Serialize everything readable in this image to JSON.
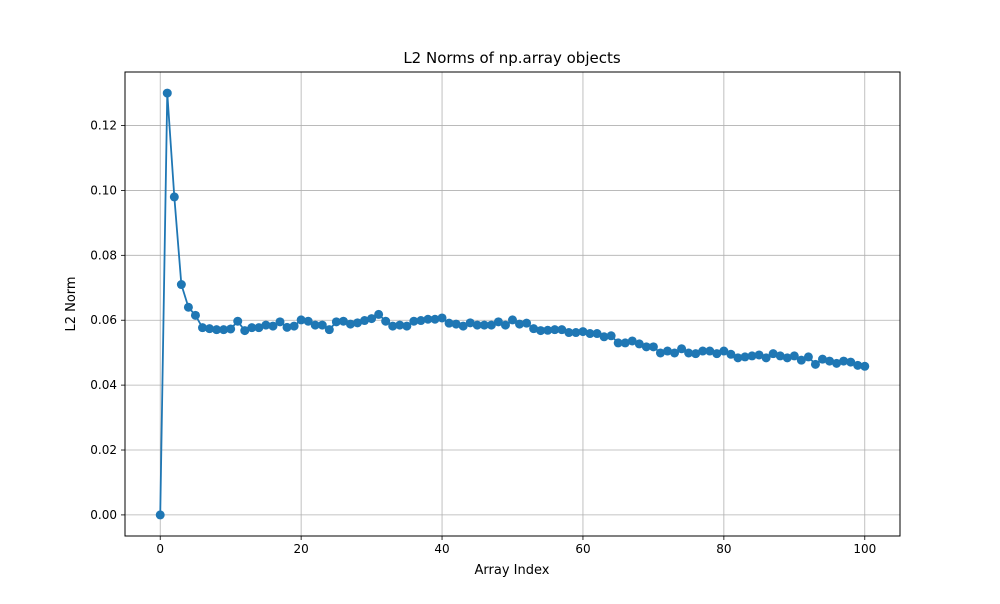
{
  "chart_data": {
    "type": "line",
    "title": "L2 Norms of np.array objects",
    "xlabel": "Array Index",
    "ylabel": "L2 Norm",
    "xlim": [
      -5,
      105
    ],
    "ylim": [
      -0.0065,
      0.1365
    ],
    "xticks": [
      0,
      20,
      40,
      60,
      80,
      100
    ],
    "yticks": [
      0.0,
      0.02,
      0.04,
      0.06,
      0.08,
      0.1,
      0.12
    ],
    "xtick_labels": [
      "0",
      "20",
      "40",
      "60",
      "80",
      "100"
    ],
    "ytick_labels": [
      "0.00",
      "0.02",
      "0.04",
      "0.06",
      "0.08",
      "0.10",
      "0.12"
    ],
    "grid": true,
    "marker": "circle",
    "color": "#1f77b4",
    "series": [
      {
        "x": [
          0,
          1,
          2,
          3,
          4,
          5,
          6,
          7,
          8,
          9,
          10,
          11,
          12,
          13,
          14,
          15,
          16,
          17,
          18,
          19,
          20,
          21,
          22,
          23,
          24,
          25,
          26,
          27,
          28,
          29,
          30,
          31,
          32,
          33,
          34,
          35,
          36,
          37,
          38,
          39,
          40,
          41,
          42,
          43,
          44,
          45,
          46,
          47,
          48,
          49,
          50,
          51,
          52,
          53,
          54,
          55,
          56,
          57,
          58,
          59,
          60,
          61,
          62,
          63,
          64,
          65,
          66,
          67,
          68,
          69,
          70,
          71,
          72,
          73,
          74,
          75,
          76,
          77,
          78,
          79,
          80,
          81,
          82,
          83,
          84,
          85,
          86,
          87,
          88,
          89,
          90,
          91,
          92,
          93,
          94,
          95,
          96,
          97,
          98,
          99,
          100
        ],
        "values": [
          0.0,
          0.13,
          0.098,
          0.071,
          0.064,
          0.0615,
          0.0577,
          0.0574,
          0.0571,
          0.0571,
          0.0573,
          0.0597,
          0.0568,
          0.0577,
          0.0577,
          0.0585,
          0.0582,
          0.0595,
          0.0578,
          0.0582,
          0.0601,
          0.0597,
          0.0585,
          0.0585,
          0.0571,
          0.0595,
          0.0597,
          0.0588,
          0.0592,
          0.0599,
          0.0605,
          0.0618,
          0.0597,
          0.0582,
          0.0585,
          0.0582,
          0.0597,
          0.0599,
          0.0603,
          0.0603,
          0.0607,
          0.0591,
          0.0588,
          0.0582,
          0.0592,
          0.0585,
          0.0585,
          0.0585,
          0.0595,
          0.0585,
          0.0601,
          0.0588,
          0.0591,
          0.0574,
          0.0568,
          0.0569,
          0.0571,
          0.0571,
          0.0562,
          0.0562,
          0.0565,
          0.0559,
          0.0559,
          0.0549,
          0.0552,
          0.053,
          0.053,
          0.0536,
          0.0527,
          0.0518,
          0.0518,
          0.0499,
          0.0505,
          0.0499,
          0.0512,
          0.0499,
          0.0497,
          0.0505,
          0.0505,
          0.0497,
          0.0505,
          0.0495,
          0.0484,
          0.0487,
          0.049,
          0.0493,
          0.0484,
          0.0497,
          0.049,
          0.0484,
          0.049,
          0.0477,
          0.0487,
          0.0464,
          0.048,
          0.0474,
          0.0467,
          0.0474,
          0.0471,
          0.0461,
          0.0458
        ]
      }
    ]
  }
}
